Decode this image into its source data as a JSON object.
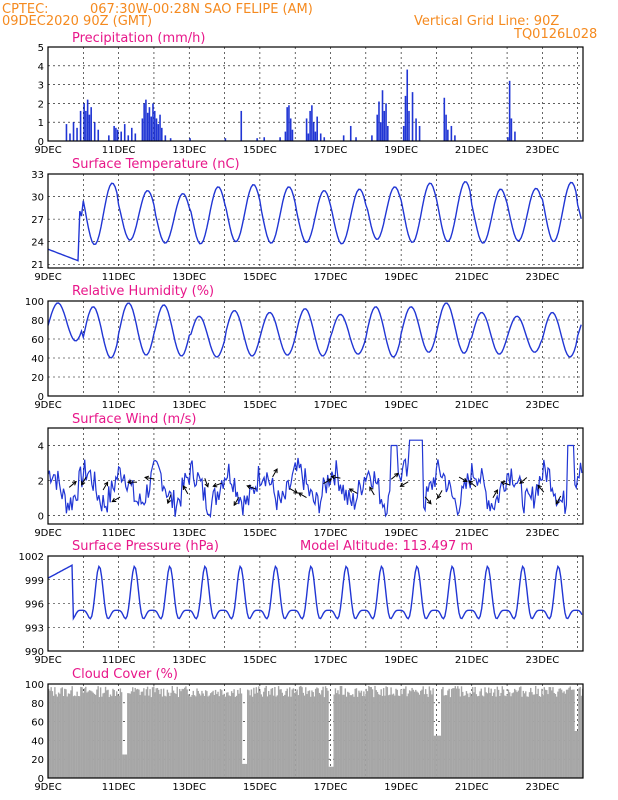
{
  "header": {
    "source": "CPTEC:",
    "location": "067:30W-00:28N  SAO FELIPE (AM)",
    "init_time": "09DEC2020 90Z (GMT)",
    "grid_note": "Vertical Grid Line: 90Z",
    "model_id": "TQ0126L028"
  },
  "colors": {
    "header": "#f58a1f",
    "title": "#e8178a",
    "series": "#2136d4",
    "cloud": "#a6a6a6",
    "grid": "#000000"
  },
  "x_ticks": [
    "9DEC",
    "11DEC",
    "13DEC",
    "15DEC",
    "17DEC",
    "19DEC",
    "21DEC",
    "23DEC"
  ],
  "chart_data": [
    {
      "type": "bar",
      "title": "Precipitation (mm/h)",
      "ylim": [
        0,
        5
      ],
      "yticks": [
        0,
        1,
        2,
        3,
        4,
        5
      ],
      "x_unit": "days since 09DEC 00Z",
      "bars": [
        [
          0.5,
          0.9
        ],
        [
          0.6,
          0.4
        ],
        [
          0.7,
          1.0
        ],
        [
          0.8,
          0.7
        ],
        [
          0.9,
          1.6
        ],
        [
          1.0,
          2.0
        ],
        [
          1.05,
          1.6
        ],
        [
          1.1,
          2.2
        ],
        [
          1.15,
          1.4
        ],
        [
          1.2,
          1.8
        ],
        [
          1.3,
          1.0
        ],
        [
          1.4,
          0.6
        ],
        [
          1.7,
          0.3
        ],
        [
          1.85,
          0.8
        ],
        [
          1.9,
          0.7
        ],
        [
          1.95,
          0.6
        ],
        [
          2.05,
          0.5
        ],
        [
          2.15,
          0.9
        ],
        [
          2.25,
          0.3
        ],
        [
          2.35,
          0.7
        ],
        [
          2.45,
          0.4
        ],
        [
          2.65,
          1.2
        ],
        [
          2.7,
          2.0
        ],
        [
          2.75,
          2.2
        ],
        [
          2.8,
          1.5
        ],
        [
          2.85,
          1.8
        ],
        [
          2.9,
          1.3
        ],
        [
          2.95,
          2.0
        ],
        [
          3.0,
          1.6
        ],
        [
          3.05,
          1.2
        ],
        [
          3.1,
          0.9
        ],
        [
          3.15,
          1.4
        ],
        [
          3.2,
          0.7
        ],
        [
          3.3,
          0.3
        ],
        [
          3.45,
          0.15
        ],
        [
          4.0,
          0.15
        ],
        [
          5.0,
          0.15
        ],
        [
          5.45,
          1.6
        ],
        [
          5.9,
          0.15
        ],
        [
          6.1,
          0.2
        ],
        [
          6.55,
          0.2
        ],
        [
          6.7,
          0.5
        ],
        [
          6.75,
          1.8
        ],
        [
          6.8,
          1.9
        ],
        [
          6.85,
          1.2
        ],
        [
          6.9,
          0.6
        ],
        [
          7.3,
          1.2
        ],
        [
          7.35,
          0.4
        ],
        [
          7.4,
          1.6
        ],
        [
          7.45,
          1.9
        ],
        [
          7.5,
          1.0
        ],
        [
          7.55,
          0.5
        ],
        [
          7.6,
          1.3
        ],
        [
          7.7,
          0.4
        ],
        [
          7.8,
          0.2
        ],
        [
          8.35,
          0.3
        ],
        [
          8.55,
          0.8
        ],
        [
          8.7,
          0.2
        ],
        [
          9.15,
          0.3
        ],
        [
          9.3,
          1.4
        ],
        [
          9.35,
          2.1
        ],
        [
          9.4,
          1.0
        ],
        [
          9.45,
          2.7
        ],
        [
          9.5,
          1.6
        ],
        [
          9.55,
          2.0
        ],
        [
          9.6,
          0.8
        ],
        [
          10.05,
          0.8
        ],
        [
          10.1,
          2.4
        ],
        [
          10.15,
          3.8
        ],
        [
          10.2,
          1.6
        ],
        [
          10.3,
          2.6
        ],
        [
          10.4,
          1.2
        ],
        [
          10.5,
          0.8
        ],
        [
          11.2,
          2.3
        ],
        [
          11.25,
          1.4
        ],
        [
          11.3,
          0.6
        ],
        [
          11.4,
          0.8
        ],
        [
          11.5,
          0.3
        ],
        [
          13.0,
          0.2
        ],
        [
          13.05,
          3.2
        ],
        [
          13.1,
          1.2
        ],
        [
          13.2,
          0.5
        ]
      ]
    },
    {
      "type": "line",
      "title": "Surface Temperature (nC)",
      "ylim": [
        20.5,
        33
      ],
      "yticks": [
        21,
        24,
        27,
        30,
        33
      ],
      "daily_pattern": {
        "min": [
          21.5,
          23.6,
          24.2,
          23.8,
          23.7,
          24.0,
          23.8,
          23.9,
          23.7,
          24.3,
          23.9,
          24.0,
          23.8,
          24.1,
          24.0,
          24.6
        ],
        "max": [
          28.5,
          31.8,
          30.8,
          30.4,
          31.3,
          31.6,
          31.3,
          30.8,
          31.0,
          31.3,
          31.8,
          32.0,
          31.0,
          31.1,
          31.9,
          30.6
        ]
      }
    },
    {
      "type": "line",
      "title": "Relative Humidity (%)",
      "ylim": [
        0,
        100
      ],
      "yticks": [
        0,
        20,
        40,
        60,
        80,
        100
      ],
      "daily_pattern": {
        "min": [
          58,
          40,
          43,
          42,
          41,
          42,
          43,
          42,
          44,
          41,
          46,
          45,
          44,
          46,
          41,
          48
        ],
        "max": [
          98,
          94,
          98,
          96,
          84,
          90,
          88,
          92,
          86,
          94,
          94,
          98,
          88,
          84,
          88,
          86
        ]
      }
    },
    {
      "type": "line",
      "title": "Surface Wind (m/s)",
      "ylim": [
        -0.5,
        5
      ],
      "yticks": [
        0,
        2,
        4
      ],
      "values_note": "speed with direction arrows",
      "arrows_deg": [
        40,
        -120,
        60,
        -150,
        180,
        170,
        -110,
        120,
        -70,
        -160,
        -120,
        160,
        60,
        -30,
        150,
        30,
        170,
        150,
        120,
        40,
        -150,
        -50,
        -120,
        -30,
        140,
        60,
        160,
        -140,
        130,
        -120
      ]
    },
    {
      "type": "line",
      "title": "Surface Pressure (hPa)",
      "annotation": "Model Altitude: 113.497 m",
      "ylim": [
        990,
        1002
      ],
      "yticks": [
        990,
        993,
        996,
        999,
        1002
      ]
    },
    {
      "type": "bar",
      "title": "Cloud Cover (%)",
      "ylim": [
        0,
        100
      ],
      "yticks": [
        0,
        20,
        40,
        60,
        80,
        100
      ]
    }
  ]
}
